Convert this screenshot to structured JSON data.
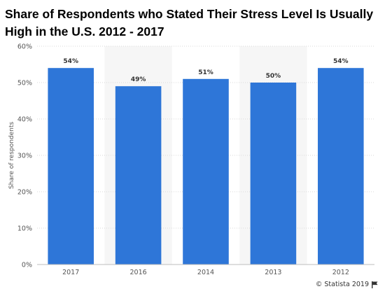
{
  "title": "Share of Respondents who Stated Their Stress Level Is Usually High in the U.S. 2012 - 2017",
  "credit": "© Statista 2019",
  "colors": {
    "bar": "#2e76d8",
    "band": "#f6f6f6",
    "grid": "#d9d9d9",
    "axis_text": "#555555"
  },
  "chart_data": {
    "type": "bar",
    "title": "Share of Respondents who Stated Their Stress Level Is Usually High in the U.S. 2012 - 2017",
    "xlabel": "",
    "ylabel": "Share of respondents",
    "categories": [
      "2017",
      "2016",
      "2014",
      "2013",
      "2012"
    ],
    "values": [
      54,
      49,
      51,
      50,
      54
    ],
    "value_labels": [
      "54%",
      "49%",
      "51%",
      "50%",
      "54%"
    ],
    "yticks": [
      0,
      10,
      20,
      30,
      40,
      50,
      60
    ],
    "ytick_labels": [
      "0%",
      "10%",
      "20%",
      "30%",
      "40%",
      "50%",
      "60%"
    ],
    "ylim": [
      0,
      60
    ],
    "grid": true,
    "legend": "none"
  }
}
